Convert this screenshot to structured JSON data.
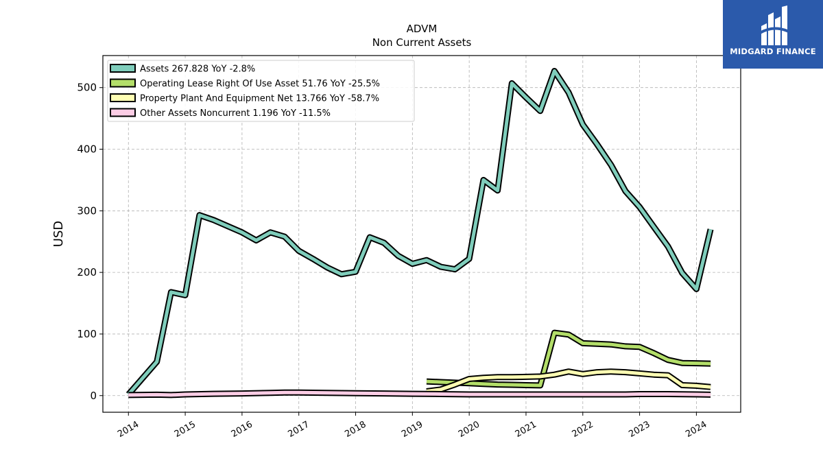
{
  "chart_data": {
    "type": "line",
    "title": "ADVM",
    "subtitle": "Non Current  Assets",
    "ylabel": "USD",
    "xlabel": "",
    "xlim": [
      2013.55,
      2024.78
    ],
    "ylim": [
      -27,
      552
    ],
    "y_ticks": [
      0,
      100,
      200,
      300,
      400,
      500
    ],
    "x_ticks": [
      2014,
      2015,
      2016,
      2017,
      2018,
      2019,
      2020,
      2021,
      2022,
      2023,
      2024
    ],
    "grid": true,
    "legend_position": "top-left",
    "series": [
      {
        "name": "Assets  267.828 YoY -2.8%",
        "color": "#7fcdbb",
        "points": [
          [
            2014.0,
            2
          ],
          [
            2014.5,
            55
          ],
          [
            2014.75,
            168
          ],
          [
            2015.0,
            163
          ],
          [
            2015.25,
            293
          ],
          [
            2015.5,
            285
          ],
          [
            2016.0,
            265
          ],
          [
            2016.25,
            252
          ],
          [
            2016.5,
            265
          ],
          [
            2016.75,
            258
          ],
          [
            2017.0,
            235
          ],
          [
            2017.25,
            222
          ],
          [
            2017.5,
            208
          ],
          [
            2017.75,
            197
          ],
          [
            2018.0,
            201
          ],
          [
            2018.25,
            257
          ],
          [
            2018.5,
            248
          ],
          [
            2018.75,
            227
          ],
          [
            2019.0,
            214
          ],
          [
            2019.25,
            220
          ],
          [
            2019.5,
            209
          ],
          [
            2019.75,
            205
          ],
          [
            2020.0,
            222
          ],
          [
            2020.25,
            350
          ],
          [
            2020.5,
            333
          ],
          [
            2020.75,
            507
          ],
          [
            2021.0,
            484
          ],
          [
            2021.25,
            462
          ],
          [
            2021.5,
            527
          ],
          [
            2021.75,
            492
          ],
          [
            2022.0,
            440
          ],
          [
            2022.25,
            408
          ],
          [
            2022.5,
            374
          ],
          [
            2022.75,
            332
          ],
          [
            2023.0,
            306
          ],
          [
            2023.25,
            274
          ],
          [
            2023.5,
            242
          ],
          [
            2023.75,
            199
          ],
          [
            2024.0,
            173
          ],
          [
            2024.25,
            270
          ]
        ]
      },
      {
        "name": "Operating Lease Right Of Use Asset  51.76 YoY -25.5%",
        "color": "#b3de69",
        "points": [
          [
            2019.25,
            23
          ],
          [
            2019.5,
            22
          ],
          [
            2019.75,
            21
          ],
          [
            2020.0,
            20
          ],
          [
            2020.25,
            19
          ],
          [
            2020.5,
            18
          ],
          [
            2020.75,
            17.5
          ],
          [
            2021.0,
            17
          ],
          [
            2021.25,
            16.5
          ],
          [
            2021.5,
            102
          ],
          [
            2021.75,
            99
          ],
          [
            2022.0,
            85
          ],
          [
            2022.25,
            84
          ],
          [
            2022.5,
            83
          ],
          [
            2022.75,
            80
          ],
          [
            2023.0,
            79
          ],
          [
            2023.25,
            69
          ],
          [
            2023.5,
            58
          ],
          [
            2023.75,
            53
          ],
          [
            2024.0,
            52.5
          ],
          [
            2024.25,
            52
          ]
        ]
      },
      {
        "name": "Property Plant And Equipment Net  13.766 YoY -58.7%",
        "color": "#ffffb3",
        "points": [
          [
            2019.25,
            7
          ],
          [
            2019.5,
            10
          ],
          [
            2019.75,
            18
          ],
          [
            2020.0,
            27
          ],
          [
            2020.25,
            29
          ],
          [
            2020.5,
            30
          ],
          [
            2020.75,
            30
          ],
          [
            2021.0,
            30.5
          ],
          [
            2021.25,
            31
          ],
          [
            2021.5,
            34
          ],
          [
            2021.75,
            39
          ],
          [
            2022.0,
            35
          ],
          [
            2022.25,
            38
          ],
          [
            2022.5,
            39
          ],
          [
            2022.75,
            38
          ],
          [
            2023.0,
            36
          ],
          [
            2023.25,
            34
          ],
          [
            2023.5,
            33
          ],
          [
            2023.75,
            17
          ],
          [
            2024.0,
            16
          ],
          [
            2024.25,
            14
          ]
        ]
      },
      {
        "name": "Other Assets Noncurrent  1.196 YoY -11.5%",
        "color": "#fccde5",
        "points": [
          [
            2014.0,
            1
          ],
          [
            2014.5,
            1.5
          ],
          [
            2014.75,
            1
          ],
          [
            2015.0,
            2
          ],
          [
            2015.5,
            3
          ],
          [
            2016.0,
            3.5
          ],
          [
            2016.5,
            4.5
          ],
          [
            2016.75,
            5
          ],
          [
            2017.0,
            5
          ],
          [
            2017.5,
            4.5
          ],
          [
            2018.0,
            4
          ],
          [
            2018.5,
            3.5
          ],
          [
            2019.0,
            3
          ],
          [
            2019.5,
            2.5
          ],
          [
            2020.0,
            2
          ],
          [
            2020.5,
            2
          ],
          [
            2021.0,
            2
          ],
          [
            2021.5,
            2
          ],
          [
            2022.0,
            2
          ],
          [
            2022.5,
            2
          ],
          [
            2022.75,
            2
          ],
          [
            2023.0,
            2.5
          ],
          [
            2023.5,
            2.5
          ],
          [
            2024.0,
            2
          ],
          [
            2024.25,
            1.5
          ]
        ]
      }
    ]
  },
  "logo": {
    "text": "MIDGARD FINANCE",
    "color": "#2b5aab"
  }
}
